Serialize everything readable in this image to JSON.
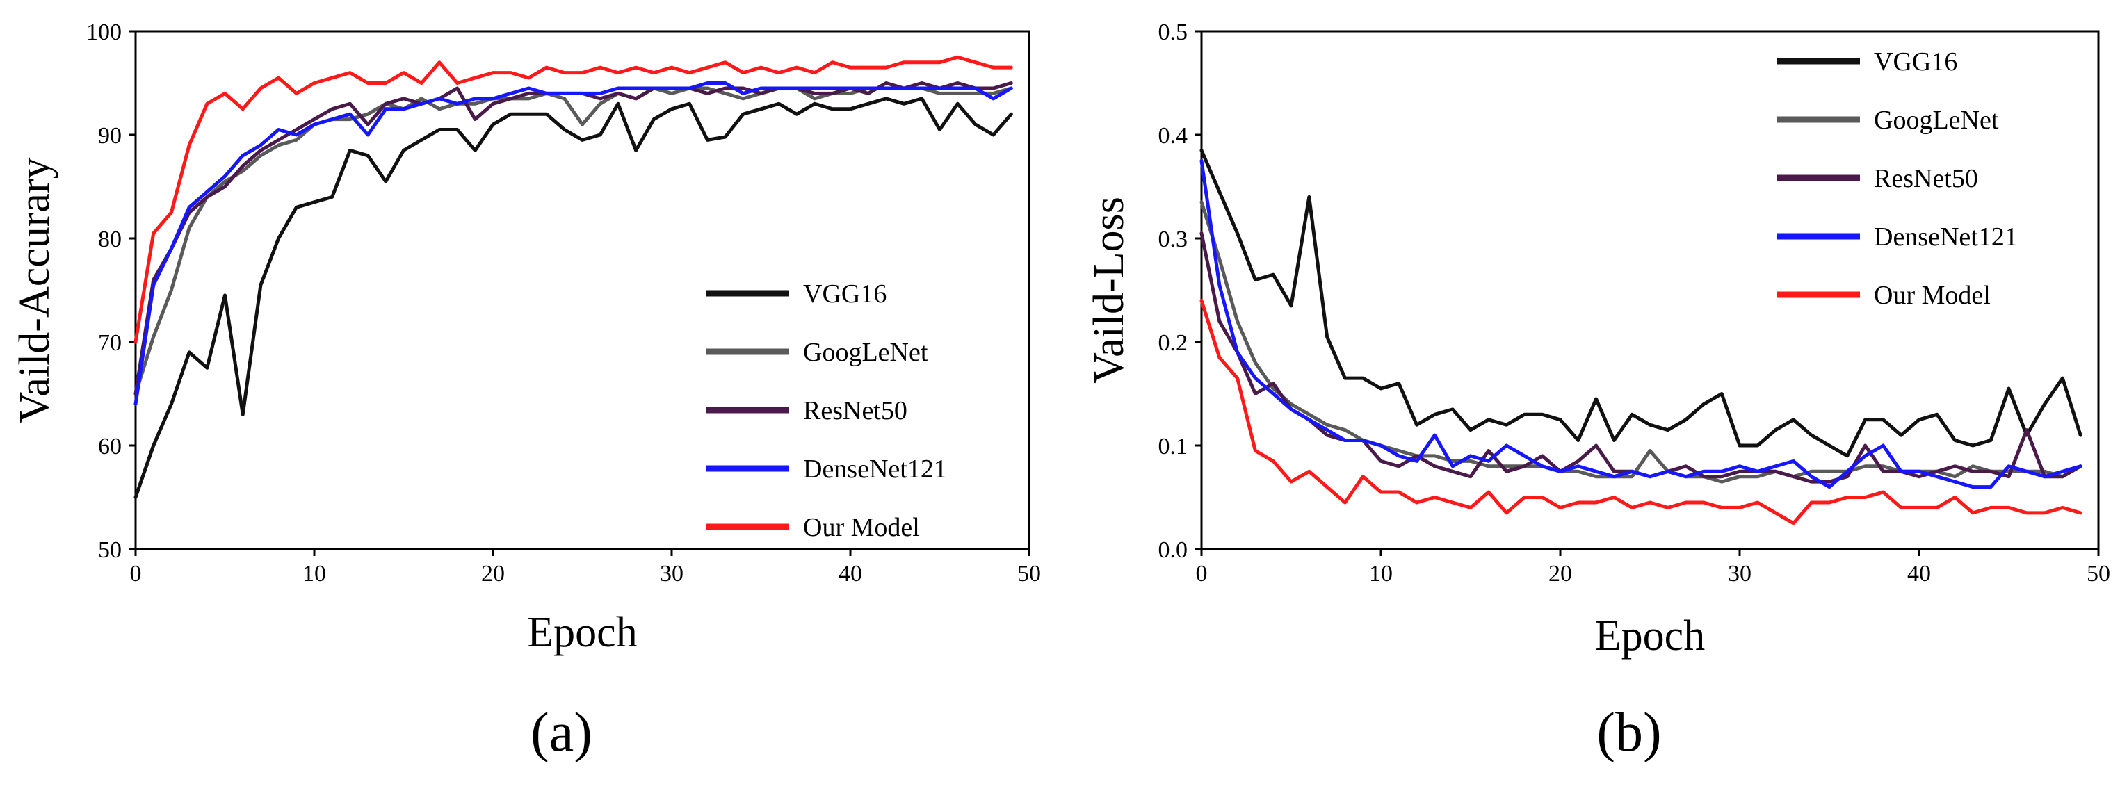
{
  "chart_data": [
    {
      "type": "line",
      "panel_label": "(a)",
      "xlabel": "Epoch",
      "ylabel": "Vaild-Accurary",
      "xlim": [
        0,
        50
      ],
      "ylim": [
        50,
        100
      ],
      "xticks": [
        "0",
        "10",
        "20",
        "30",
        "40",
        "50"
      ],
      "yticks": [
        "50",
        "60",
        "70",
        "80",
        "90",
        "100"
      ],
      "grid": false,
      "legend_position": "bottom-right",
      "x": [
        0,
        1,
        2,
        3,
        4,
        5,
        6,
        7,
        8,
        9,
        10,
        11,
        12,
        13,
        14,
        15,
        16,
        17,
        18,
        19,
        20,
        21,
        22,
        23,
        24,
        25,
        26,
        27,
        28,
        29,
        30,
        31,
        32,
        33,
        34,
        35,
        36,
        37,
        38,
        39,
        40,
        41,
        42,
        43,
        44,
        45,
        46,
        47,
        48,
        49
      ],
      "series": [
        {
          "name": "VGG16",
          "color": "#111111",
          "values": [
            55,
            60,
            64,
            69,
            67.5,
            74.5,
            63,
            75.5,
            80,
            83,
            83.5,
            84,
            88.5,
            88,
            85.5,
            88.5,
            89.5,
            90.5,
            90.5,
            88.5,
            91,
            92,
            92,
            92,
            90.5,
            89.5,
            90,
            93,
            88.5,
            91.5,
            92.5,
            93,
            89.5,
            89.8,
            92,
            92.5,
            93,
            92,
            93,
            92.5,
            92.5,
            93,
            93.5,
            93,
            93.5,
            90.5,
            93,
            91,
            90,
            92
          ]
        },
        {
          "name": "GoogLeNet",
          "color": "#5a5a5a",
          "values": [
            65,
            70.5,
            75,
            81,
            84,
            85.5,
            86.5,
            88,
            89,
            89.5,
            91,
            91.5,
            91.5,
            92,
            93,
            92.5,
            93.5,
            92.5,
            93,
            93,
            93.5,
            93.5,
            93.5,
            94,
            93.5,
            91,
            93,
            94,
            93.5,
            94.5,
            94,
            94.5,
            94.5,
            94,
            93.5,
            94,
            94.5,
            94.5,
            93.5,
            94,
            94,
            94.5,
            94.5,
            94.5,
            94.5,
            94,
            94,
            94,
            94,
            94.5
          ]
        },
        {
          "name": "ResNet50",
          "color": "#4a1a4a",
          "values": [
            65,
            76,
            79,
            82.5,
            84,
            85,
            87,
            88.5,
            89.5,
            90.5,
            91.5,
            92.5,
            93,
            91,
            93,
            93.5,
            93,
            93.5,
            94.5,
            91.5,
            93,
            93.5,
            94,
            94,
            94,
            94,
            93.5,
            94,
            93.5,
            94.5,
            94.5,
            94.5,
            94,
            94.5,
            94.5,
            94,
            94.5,
            94.5,
            94,
            94,
            94.5,
            94,
            95,
            94.5,
            95,
            94.5,
            95,
            94.5,
            94.5,
            95
          ]
        },
        {
          "name": "DenseNet121",
          "color": "#1616ff",
          "values": [
            64,
            75.5,
            79,
            83,
            84.5,
            86,
            88,
            89,
            90.5,
            90,
            91,
            91.5,
            92,
            90,
            92.5,
            92.5,
            93,
            93.5,
            93,
            93.5,
            93.5,
            94,
            94.5,
            94,
            94,
            94,
            94,
            94.5,
            94.5,
            94.5,
            94.5,
            94.5,
            95,
            95,
            94,
            94.5,
            94.5,
            94.5,
            94.5,
            94.5,
            94.5,
            94.5,
            94.5,
            94.5,
            94.5,
            94.5,
            94.5,
            94.5,
            93.5,
            94.5
          ]
        },
        {
          "name": "Our Model",
          "color": "#ff1a1a",
          "values": [
            70,
            80.5,
            82.5,
            89,
            93,
            94,
            92.5,
            94.5,
            95.5,
            94,
            95,
            95.5,
            96,
            95,
            95,
            96,
            95,
            97,
            95,
            95.5,
            96,
            96,
            95.5,
            96.5,
            96,
            96,
            96.5,
            96,
            96.5,
            96,
            96.5,
            96,
            96.5,
            97,
            96,
            96.5,
            96,
            96.5,
            96,
            97,
            96.5,
            96.5,
            96.5,
            97,
            97,
            97,
            97.5,
            97,
            96.5,
            96.5
          ]
        }
      ]
    },
    {
      "type": "line",
      "panel_label": "(b)",
      "xlabel": "Epoch",
      "ylabel": "Vaild-Loss",
      "xlim": [
        0,
        50
      ],
      "ylim": [
        0,
        0.5
      ],
      "xticks": [
        "0",
        "10",
        "20",
        "30",
        "40",
        "50"
      ],
      "yticks": [
        "0.0",
        "0.1",
        "0.2",
        "0.3",
        "0.4",
        "0.5"
      ],
      "grid": false,
      "legend_position": "top-right",
      "x": [
        0,
        1,
        2,
        3,
        4,
        5,
        6,
        7,
        8,
        9,
        10,
        11,
        12,
        13,
        14,
        15,
        16,
        17,
        18,
        19,
        20,
        21,
        22,
        23,
        24,
        25,
        26,
        27,
        28,
        29,
        30,
        31,
        32,
        33,
        34,
        35,
        36,
        37,
        38,
        39,
        40,
        41,
        42,
        43,
        44,
        45,
        46,
        47,
        48,
        49
      ],
      "series": [
        {
          "name": "VGG16",
          "color": "#111111",
          "values": [
            0.385,
            0.345,
            0.305,
            0.26,
            0.265,
            0.235,
            0.34,
            0.205,
            0.165,
            0.165,
            0.155,
            0.16,
            0.12,
            0.13,
            0.135,
            0.115,
            0.125,
            0.12,
            0.13,
            0.13,
            0.125,
            0.105,
            0.145,
            0.105,
            0.13,
            0.12,
            0.115,
            0.125,
            0.14,
            0.15,
            0.1,
            0.1,
            0.115,
            0.125,
            0.11,
            0.1,
            0.09,
            0.125,
            0.125,
            0.11,
            0.125,
            0.13,
            0.105,
            0.1,
            0.105,
            0.155,
            0.11,
            0.14,
            0.165,
            0.11
          ]
        },
        {
          "name": "GoogLeNet",
          "color": "#5a5a5a",
          "values": [
            0.335,
            0.28,
            0.22,
            0.18,
            0.155,
            0.14,
            0.13,
            0.12,
            0.115,
            0.105,
            0.1,
            0.095,
            0.09,
            0.09,
            0.085,
            0.085,
            0.08,
            0.08,
            0.08,
            0.08,
            0.075,
            0.075,
            0.07,
            0.07,
            0.07,
            0.095,
            0.075,
            0.07,
            0.07,
            0.065,
            0.07,
            0.07,
            0.075,
            0.07,
            0.075,
            0.075,
            0.075,
            0.08,
            0.08,
            0.075,
            0.075,
            0.075,
            0.07,
            0.08,
            0.075,
            0.075,
            0.075,
            0.075,
            0.07,
            0.08
          ]
        },
        {
          "name": "ResNet50",
          "color": "#4a1a4a",
          "values": [
            0.305,
            0.22,
            0.19,
            0.15,
            0.16,
            0.135,
            0.125,
            0.11,
            0.105,
            0.105,
            0.085,
            0.08,
            0.09,
            0.08,
            0.075,
            0.07,
            0.095,
            0.075,
            0.08,
            0.09,
            0.075,
            0.085,
            0.1,
            0.075,
            0.075,
            0.07,
            0.075,
            0.08,
            0.07,
            0.07,
            0.075,
            0.075,
            0.075,
            0.07,
            0.065,
            0.065,
            0.07,
            0.1,
            0.075,
            0.075,
            0.07,
            0.075,
            0.08,
            0.075,
            0.075,
            0.07,
            0.115,
            0.07,
            0.07,
            0.08
          ]
        },
        {
          "name": "DenseNet121",
          "color": "#1616ff",
          "values": [
            0.375,
            0.255,
            0.19,
            0.165,
            0.15,
            0.135,
            0.125,
            0.115,
            0.105,
            0.105,
            0.1,
            0.09,
            0.085,
            0.11,
            0.08,
            0.09,
            0.085,
            0.1,
            0.09,
            0.08,
            0.075,
            0.08,
            0.075,
            0.07,
            0.075,
            0.07,
            0.075,
            0.07,
            0.075,
            0.075,
            0.08,
            0.075,
            0.08,
            0.085,
            0.07,
            0.06,
            0.075,
            0.09,
            0.1,
            0.075,
            0.075,
            0.07,
            0.065,
            0.06,
            0.06,
            0.08,
            0.075,
            0.07,
            0.075,
            0.08
          ]
        },
        {
          "name": "Our Model",
          "color": "#ff1a1a",
          "values": [
            0.24,
            0.185,
            0.165,
            0.095,
            0.085,
            0.065,
            0.075,
            0.06,
            0.045,
            0.07,
            0.055,
            0.055,
            0.045,
            0.05,
            0.045,
            0.04,
            0.055,
            0.035,
            0.05,
            0.05,
            0.04,
            0.045,
            0.045,
            0.05,
            0.04,
            0.045,
            0.04,
            0.045,
            0.045,
            0.04,
            0.04,
            0.045,
            0.035,
            0.025,
            0.045,
            0.045,
            0.05,
            0.05,
            0.055,
            0.04,
            0.04,
            0.04,
            0.05,
            0.035,
            0.04,
            0.04,
            0.035,
            0.035,
            0.04,
            0.035
          ]
        }
      ]
    }
  ]
}
